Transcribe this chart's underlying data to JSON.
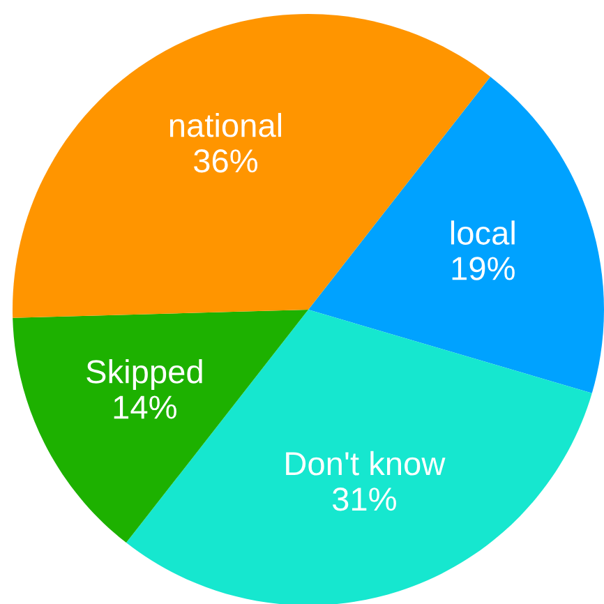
{
  "chart_data": {
    "type": "pie",
    "categories": [
      "local",
      "Don't know",
      "Skipped",
      "national"
    ],
    "values": [
      19,
      31,
      14,
      36
    ],
    "colors": [
      "#00a2ff",
      "#16e7cf",
      "#1db100",
      "#ff9500"
    ],
    "value_labels": [
      "19%",
      "31%",
      "14%",
      "36%"
    ]
  }
}
